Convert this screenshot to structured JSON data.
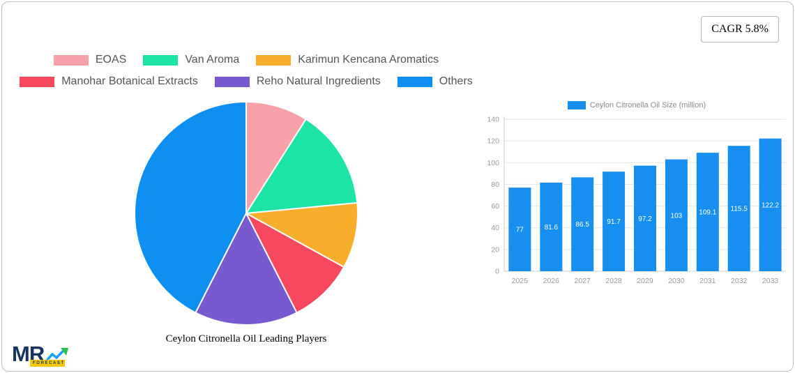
{
  "cagr_badge": {
    "label": "CAGR 5.8%"
  },
  "logo": {
    "brand": "MR",
    "tagline": "FORECAST"
  },
  "chart_data": [
    {
      "type": "pie",
      "title": "Ceylon Citronella Oil Leading Players",
      "labels": [
        "EOAS",
        "Van Aroma",
        "Karimun Kencana Aromatics",
        "Manohar Botanical Extracts",
        "Reho Natural Ingredients",
        "Others"
      ],
      "values": [
        9,
        14.5,
        9.5,
        9.5,
        15,
        42.5
      ],
      "colors": [
        "#F7A1A9",
        "#1CE3A6",
        "#F9AE2B",
        "#F8485E",
        "#7859D0",
        "#0D8FF2"
      ],
      "legend_position": "top",
      "start_angle_deg": 0,
      "direction": "clockwise"
    },
    {
      "type": "bar",
      "legend": "Ceylon Citronella Oil Size (million)",
      "categories": [
        "2025",
        "2026",
        "2027",
        "2028",
        "2029",
        "2030",
        "2031",
        "2032",
        "2033"
      ],
      "values": [
        77,
        81.6,
        86.5,
        91.7,
        97.2,
        103,
        109.1,
        115.5,
        122.2
      ],
      "ylim": [
        0,
        140
      ],
      "y_ticks": [
        0,
        20,
        40,
        60,
        80,
        100,
        120,
        140
      ],
      "bar_color": "#168FF0",
      "grid": true,
      "legend_position": "top",
      "value_labels": "inside-white"
    }
  ]
}
